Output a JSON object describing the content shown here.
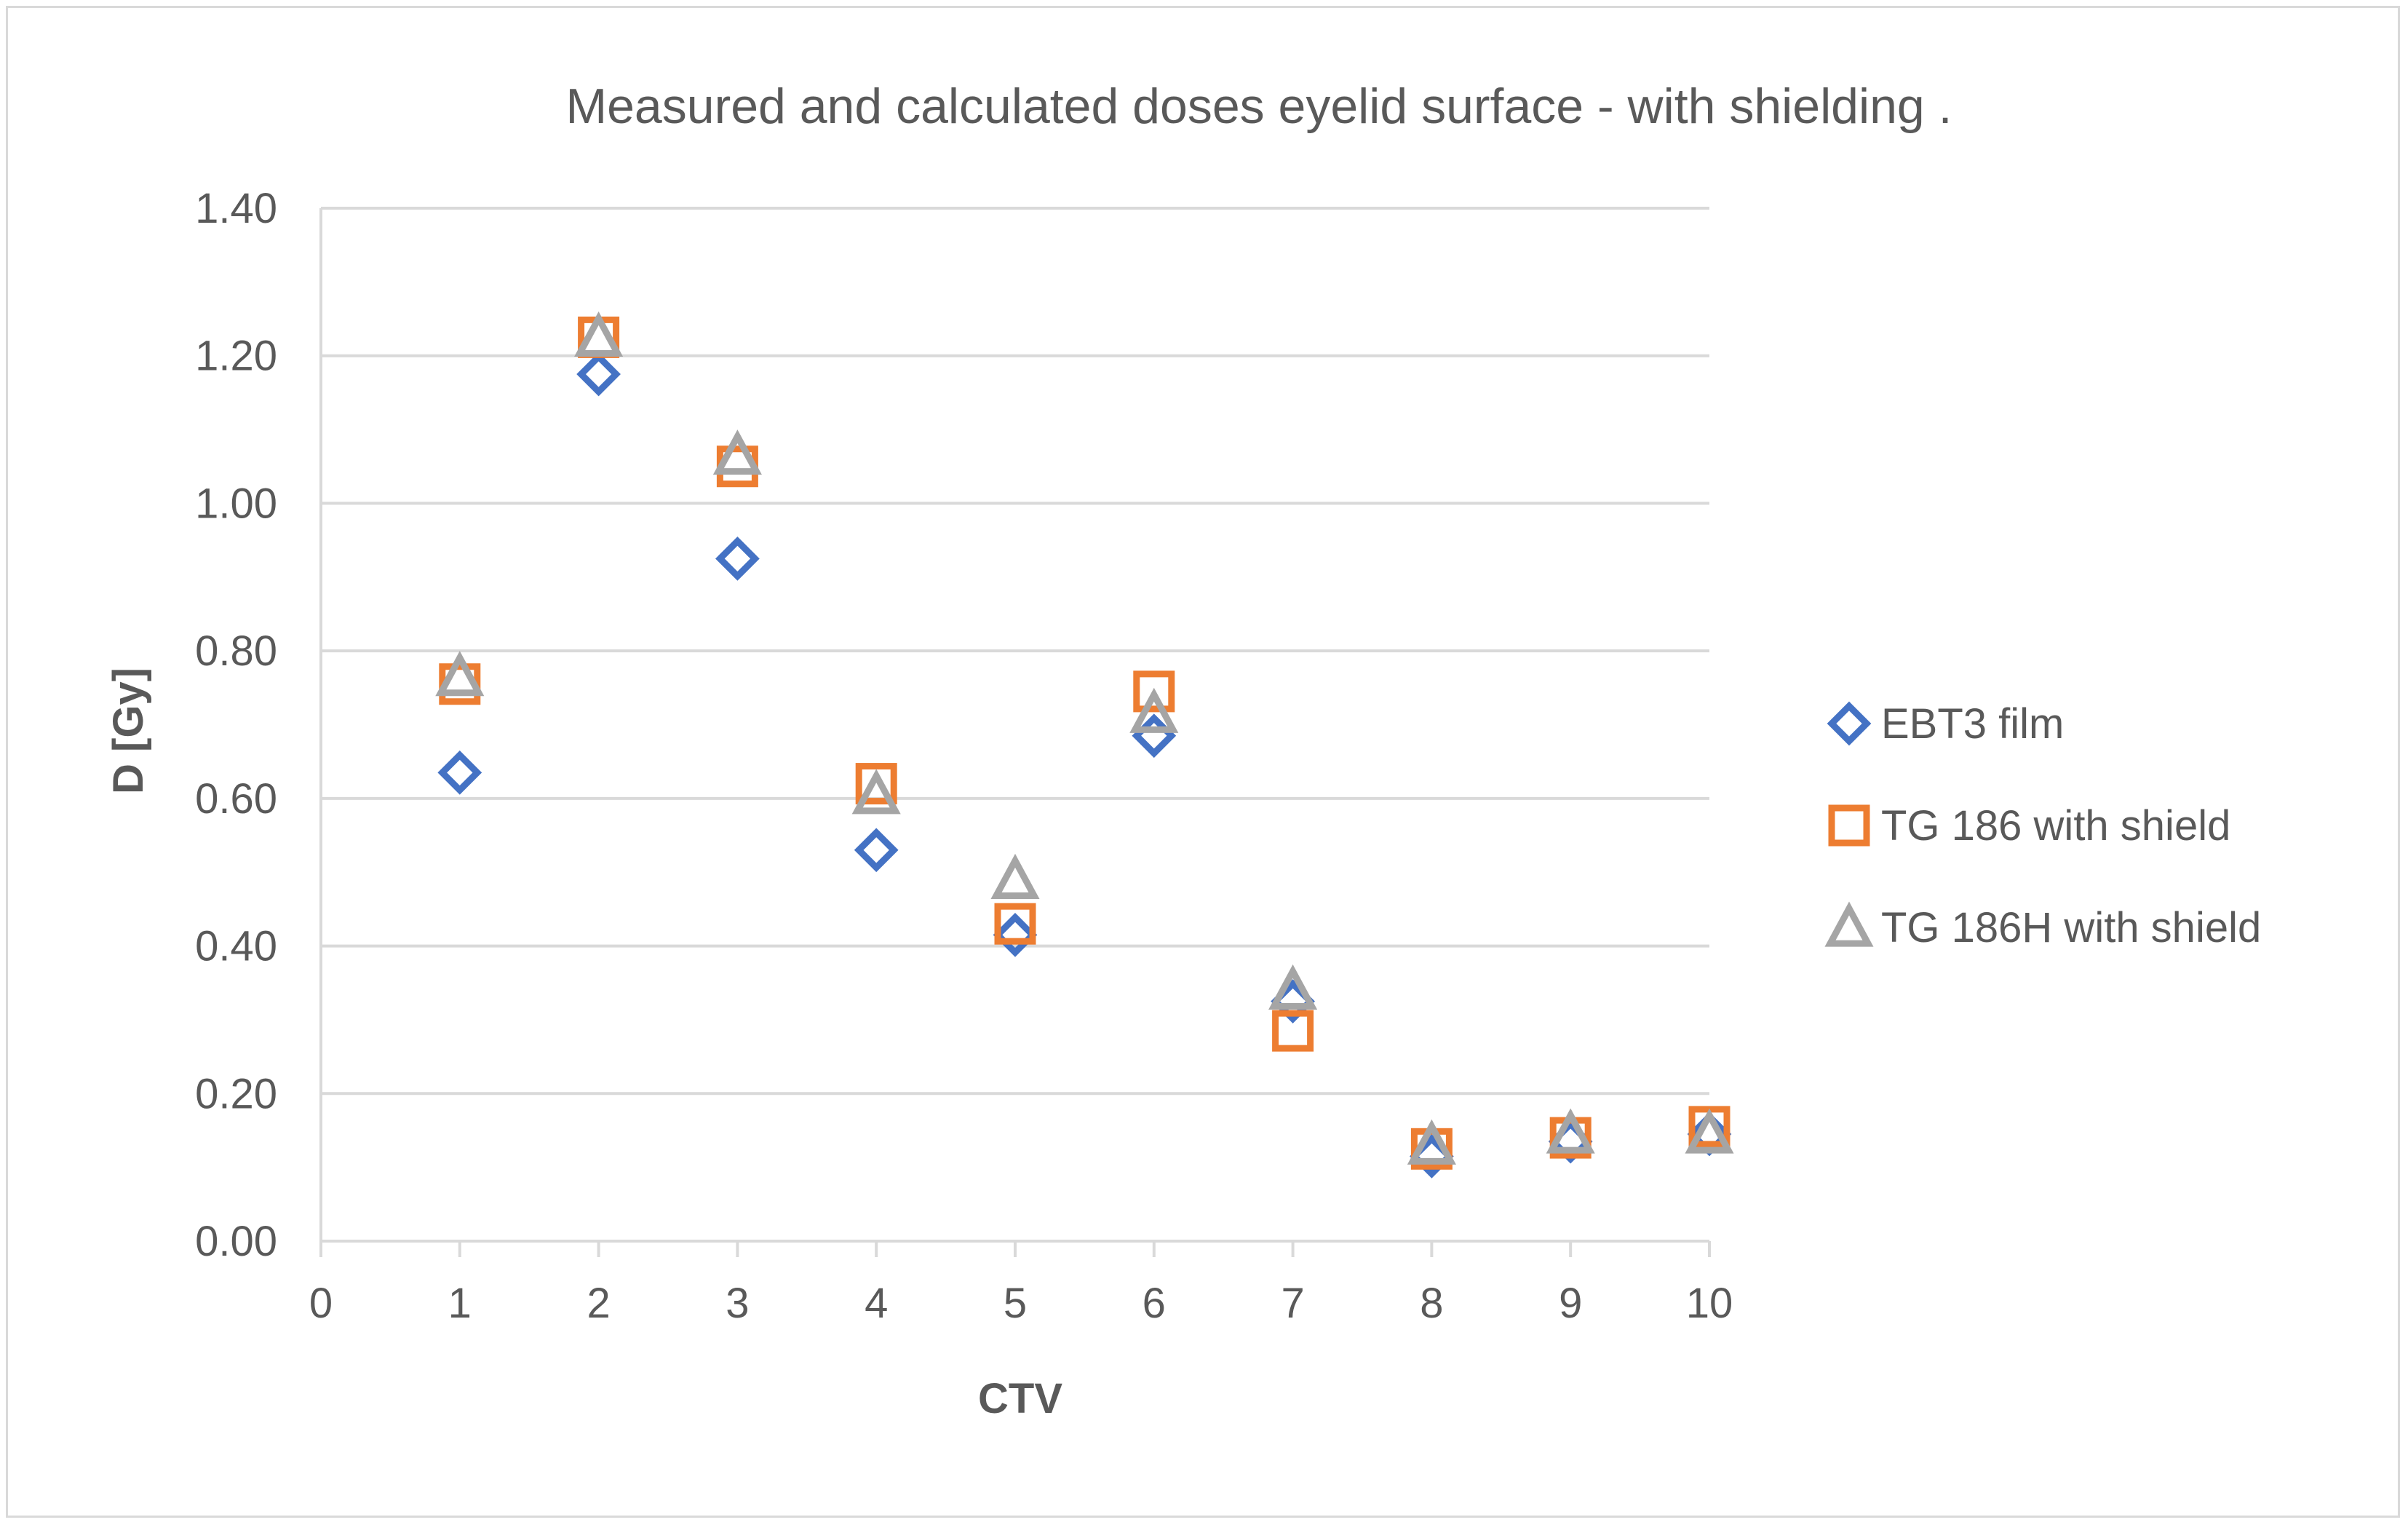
{
  "chart_data": {
    "type": "scatter",
    "title": "Measured and calculated doses eyelid surface - with shielding .",
    "xlabel": "CTV",
    "ylabel": "D [Gy]",
    "xlim": [
      0,
      10
    ],
    "ylim": [
      0,
      1.4
    ],
    "xticks": [
      0,
      1,
      2,
      3,
      4,
      5,
      6,
      7,
      8,
      9,
      10
    ],
    "yticks": [
      0,
      0.2,
      0.4,
      0.6,
      0.8,
      1.0,
      1.2,
      1.4
    ],
    "xtick_labels": [
      "0",
      "1",
      "2",
      "3",
      "4",
      "5",
      "6",
      "7",
      "8",
      "9",
      "10"
    ],
    "ytick_labels": [
      "0.00",
      "0.20",
      "0.40",
      "0.60",
      "0.80",
      "1.00",
      "1.20",
      "1.40"
    ],
    "grid": true,
    "legend_position": "right",
    "x": [
      1,
      2,
      3,
      4,
      5,
      6,
      7,
      8,
      9,
      10
    ],
    "series": [
      {
        "name": "EBT3 film",
        "marker": "diamond",
        "color": "#4472c4",
        "values": [
          0.635,
          1.175,
          0.925,
          0.53,
          0.415,
          0.685,
          0.325,
          0.115,
          0.135,
          0.145
        ]
      },
      {
        "name": "TG 186 with shield",
        "marker": "square",
        "color": "#ed7d31",
        "values": [
          0.755,
          1.225,
          1.05,
          0.62,
          0.43,
          0.745,
          0.285,
          0.125,
          0.14,
          0.155
        ]
      },
      {
        "name": "TG 186H with shield",
        "marker": "triangle",
        "color": "#a5a5a5",
        "values": [
          0.765,
          1.225,
          1.065,
          0.605,
          0.49,
          0.715,
          0.34,
          0.13,
          0.145,
          0.145
        ]
      }
    ]
  }
}
